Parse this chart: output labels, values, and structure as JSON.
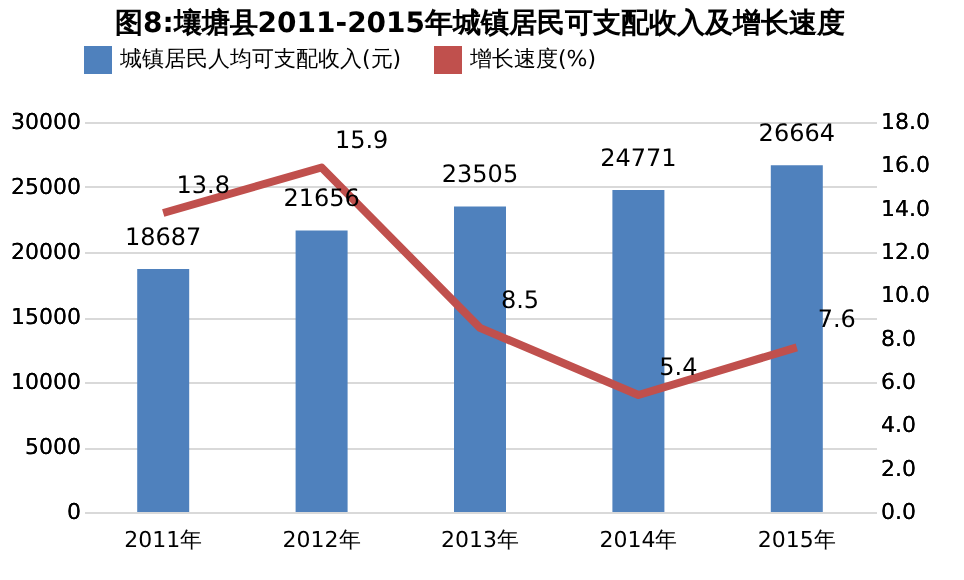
{
  "chart_data": {
    "type": "bar",
    "title": "图8:壤塘县2011-2015年城镇居民可支配收入及增长速度",
    "categories": [
      "2011年",
      "2012年",
      "2013年",
      "2014年",
      "2015年"
    ],
    "series": [
      {
        "name": "城镇居民人均可支配收入(元)",
        "color": "#4f81bd",
        "values": [
          18687,
          21656,
          23505,
          24771,
          26664
        ]
      },
      {
        "name": "增长速度(%)",
        "color": "#c0504d",
        "type": "line",
        "axis": "y2",
        "values": [
          13.8,
          15.9,
          8.5,
          5.4,
          7.6
        ]
      }
    ],
    "ylim": [
      0,
      30000
    ],
    "yticks": [
      0,
      5000,
      10000,
      15000,
      20000,
      25000,
      30000
    ],
    "y2lim": [
      0,
      18
    ],
    "y2ticks": [
      {
        "value": 0,
        "label": "0.0"
      },
      {
        "value": 2,
        "label": "2.0"
      },
      {
        "value": 4,
        "label": "4.0"
      },
      {
        "value": 6,
        "label": "6.0"
      },
      {
        "value": 8,
        "label": "8.0"
      },
      {
        "value": 10,
        "label": "10.0"
      },
      {
        "value": 12,
        "label": "12.0"
      },
      {
        "value": 14,
        "label": "14.0"
      },
      {
        "value": 16,
        "label": "16.0"
      },
      {
        "value": 18,
        "label": "18.0"
      }
    ],
    "data_labels": true,
    "grid": "y",
    "legend": "top",
    "line_style": "solid",
    "marker": "none"
  }
}
